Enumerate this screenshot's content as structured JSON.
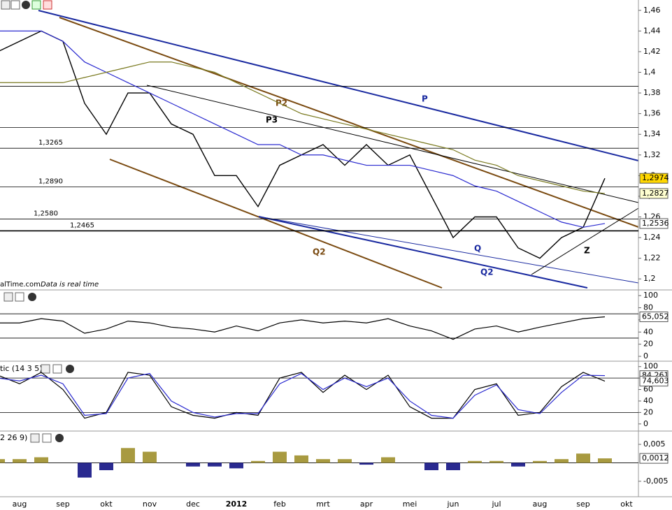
{
  "chart_data": [
    {
      "type": "line",
      "ylim": [
        1.19,
        1.47
      ],
      "yticks": [
        {
          "value": 1.46,
          "label": "1,46"
        },
        {
          "value": 1.44,
          "label": "1,44"
        },
        {
          "value": 1.42,
          "label": "1,42"
        },
        {
          "value": 1.4,
          "label": "1,4"
        },
        {
          "value": 1.38,
          "label": "1,38"
        },
        {
          "value": 1.36,
          "label": "1,36"
        },
        {
          "value": 1.34,
          "label": "1,34"
        },
        {
          "value": 1.32,
          "label": "1,32"
        },
        {
          "value": 1.3,
          "label": "1,3"
        },
        {
          "value": 1.28,
          "label": "1,28"
        },
        {
          "value": 1.26,
          "label": "1,26"
        },
        {
          "value": 1.24,
          "label": "1,24"
        },
        {
          "value": 1.22,
          "label": "1,22"
        },
        {
          "value": 1.2,
          "label": "1,2"
        }
      ],
      "series": [
        {
          "color": "#000000",
          "values": [
            1.42,
            1.43,
            1.44,
            1.43,
            1.37,
            1.34,
            1.38,
            1.38,
            1.35,
            1.34,
            1.3,
            1.3,
            1.27,
            1.31,
            1.32,
            1.33,
            1.31,
            1.33,
            1.31,
            1.32,
            1.28,
            1.24,
            1.26,
            1.26,
            1.23,
            1.22,
            1.24,
            1.25,
            1.2974,
            null
          ]
        },
        {
          "color": "#2a2ad0",
          "values": [
            1.44,
            1.44,
            1.44,
            1.43,
            1.41,
            1.4,
            1.39,
            1.38,
            1.37,
            1.36,
            1.35,
            1.34,
            1.33,
            1.33,
            1.32,
            1.32,
            1.315,
            1.31,
            1.31,
            1.31,
            1.305,
            1.3,
            1.29,
            1.285,
            1.275,
            1.265,
            1.255,
            1.25,
            1.2536,
            null
          ]
        },
        {
          "color": "#7a7a20",
          "values": [
            1.39,
            1.39,
            1.39,
            1.39,
            1.395,
            1.4,
            1.405,
            1.41,
            1.41,
            1.405,
            1.4,
            1.39,
            1.38,
            1.37,
            1.36,
            1.355,
            1.35,
            1.345,
            1.34,
            1.335,
            1.33,
            1.325,
            1.315,
            1.31,
            1.3,
            1.295,
            1.29,
            1.285,
            1.2827,
            null
          ]
        }
      ],
      "levels": [
        {
          "value": 1.3865
        },
        {
          "value": 1.3465
        },
        {
          "value": 1.3265,
          "label": "1,3265"
        },
        {
          "value": 1.289,
          "label": "1,2890"
        },
        {
          "value": 1.258,
          "label": "1,2580"
        },
        {
          "value": 1.2465,
          "label": "1,2465"
        }
      ],
      "axis_tags": [
        {
          "value": 1.2974,
          "label": "1,2974",
          "color": "#ffd700"
        },
        {
          "value": 1.2827,
          "label": "1,2827",
          "color": "#ffffd0"
        },
        {
          "value": 1.2536,
          "label": "1,2536",
          "color": "#ffffff"
        }
      ],
      "annotations": [
        "P",
        "P2",
        "P3",
        "Q",
        "Q2",
        "Q2",
        "Z"
      ],
      "source": "alTime.com",
      "note": "Data is real time"
    },
    {
      "type": "line",
      "ylim": [
        -8,
        107
      ],
      "yticks": [
        100,
        80,
        60,
        40,
        20,
        0
      ],
      "series": [
        {
          "color": "#000000",
          "values": [
            55,
            55,
            62,
            58,
            38,
            45,
            58,
            55,
            48,
            45,
            40,
            50,
            42,
            55,
            60,
            55,
            58,
            55,
            62,
            50,
            42,
            28,
            45,
            50,
            40,
            48,
            55,
            62,
            65.052,
            null
          ]
        }
      ],
      "levels": [
        {
          "value": 70
        },
        {
          "value": 30
        }
      ],
      "axis_tags": [
        {
          "value": 65.052,
          "label": "65,052",
          "color": "#ffffff"
        }
      ]
    },
    {
      "type": "line",
      "title": "tic (14 3 5)",
      "ylim": [
        -10,
        107
      ],
      "yticks": [
        100,
        80,
        60,
        40,
        20,
        0
      ],
      "series": [
        {
          "color": "#000000",
          "values": [
            85,
            70,
            90,
            60,
            10,
            20,
            90,
            85,
            30,
            15,
            10,
            20,
            15,
            80,
            90,
            55,
            85,
            60,
            85,
            30,
            10,
            10,
            60,
            70,
            15,
            20,
            65,
            90,
            74.603,
            null
          ]
        },
        {
          "color": "#2a2ad0",
          "values": [
            80,
            75,
            85,
            70,
            15,
            18,
            80,
            88,
            40,
            20,
            12,
            18,
            18,
            70,
            88,
            60,
            80,
            65,
            80,
            40,
            15,
            10,
            50,
            68,
            25,
            18,
            55,
            85,
            84.261,
            null
          ]
        }
      ],
      "levels": [
        {
          "value": 80
        },
        {
          "value": 20
        }
      ],
      "axis_tags": [
        {
          "value": 84.261,
          "label": "84,261",
          "color": "#ffffff"
        },
        {
          "value": 74.603,
          "label": "74,603",
          "color": "#ffffff"
        }
      ]
    },
    {
      "type": "bar",
      "title": "2 26 9)",
      "ylim": [
        -0.009,
        0.0086
      ],
      "yticks": [
        {
          "value": 0.005,
          "label": "0,005"
        },
        {
          "value": -0.005,
          "label": "-0,005"
        }
      ],
      "series": [
        {
          "color": "#a89a40",
          "neg_color": "#2a2a90",
          "values": [
            0.001,
            0.001,
            0.0015,
            0,
            -0.004,
            -0.002,
            0.004,
            0.003,
            0,
            -0.001,
            -0.001,
            -0.0015,
            0.0005,
            0.003,
            0.002,
            0.001,
            0.001,
            -0.0005,
            0.0015,
            0,
            -0.002,
            -0.002,
            0.0005,
            0.0005,
            -0.001,
            0.0005,
            0.001,
            0.0025,
            0.0012,
            null
          ]
        }
      ],
      "levels": [
        {
          "value": 0
        }
      ],
      "axis_tags": [
        {
          "value": 0.0012,
          "label": "0,0012",
          "color": "#ffffff"
        }
      ],
      "categories": [
        null,
        "aug",
        null,
        "sep",
        null,
        "okt",
        null,
        "nov",
        null,
        "dec",
        null,
        "2012",
        null,
        "feb",
        null,
        "mrt",
        null,
        "apr",
        null,
        "mei",
        null,
        "jun",
        null,
        "jul",
        null,
        "aug",
        null,
        "sep",
        null,
        "okt"
      ]
    }
  ]
}
